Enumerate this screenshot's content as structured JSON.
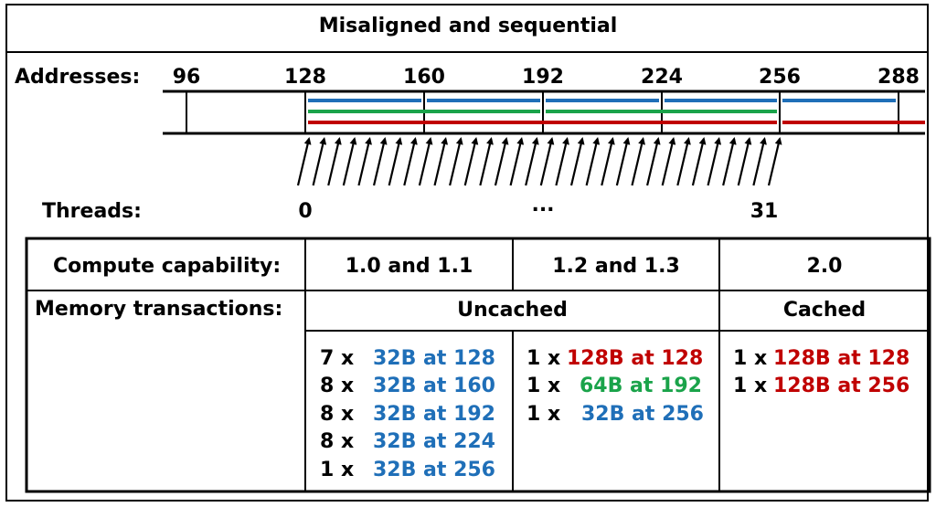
{
  "title": "Misaligned and sequential",
  "addresses_label": "Addresses:",
  "addresses": [
    "96",
    "128",
    "160",
    "192",
    "224",
    "256",
    "288"
  ],
  "threads_label": "Threads:",
  "thread_markers": [
    "0",
    "...",
    "31"
  ],
  "colors": {
    "blue": "#1f6fb8",
    "green": "#1aa34a",
    "red": "#c00000"
  },
  "table": {
    "compute_label": "Compute capability:",
    "memory_label": "Memory transactions:",
    "cc_headers": [
      "1.0 and 1.1",
      "1.2 and 1.3",
      "2.0"
    ],
    "uncached_label": "Uncached",
    "cached_label": "Cached",
    "cc10": [
      {
        "mult": "7 x",
        "desc": "32B at 128",
        "color": "blue"
      },
      {
        "mult": "8 x",
        "desc": "32B at 160",
        "color": "blue"
      },
      {
        "mult": "8 x",
        "desc": "32B at 192",
        "color": "blue"
      },
      {
        "mult": "8 x",
        "desc": "32B at 224",
        "color": "blue"
      },
      {
        "mult": "1 x",
        "desc": "32B at 256",
        "color": "blue"
      }
    ],
    "cc12": [
      {
        "mult": "1 x",
        "desc": "128B at 128",
        "color": "red"
      },
      {
        "mult": "1 x",
        "desc": "64B at 192",
        "color": "green"
      },
      {
        "mult": "1 x",
        "desc": "32B at 256",
        "color": "blue"
      }
    ],
    "cc20": [
      {
        "mult": "1 x",
        "desc": "128B at 128",
        "color": "red"
      },
      {
        "mult": "1 x",
        "desc": "128B at 256",
        "color": "red"
      }
    ]
  }
}
